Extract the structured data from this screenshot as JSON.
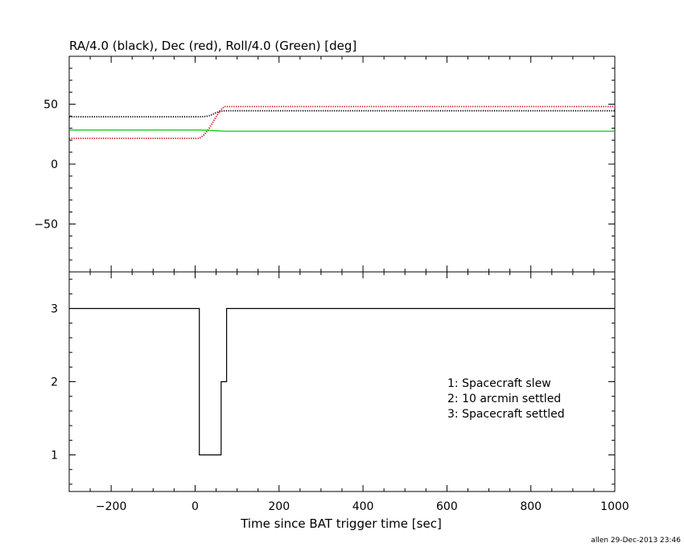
{
  "chart_data": [
    {
      "type": "line",
      "title": "RA/4.0 (black), Dec (red), Roll/4.0 (Green) [deg]",
      "xlim": [
        -300,
        1000
      ],
      "ylim": [
        -90,
        90
      ],
      "y_ticks": [
        50,
        0,
        -50
      ],
      "y_tick_labels": [
        "50",
        "0",
        "−50"
      ],
      "grid": false,
      "series": [
        {
          "name": "RA/4.0",
          "color": "#000000",
          "style": "dotted",
          "x": [
            -300,
            0,
            10,
            20,
            30,
            40,
            50,
            60,
            70,
            1000
          ],
          "y": [
            39.5,
            39.5,
            39.5,
            39.6,
            40,
            41.2,
            43,
            44,
            44.5,
            44.5
          ]
        },
        {
          "name": "Dec",
          "color": "#cc0000",
          "style": "dotted",
          "x": [
            -300,
            0,
            10,
            20,
            30,
            40,
            50,
            60,
            70,
            1000
          ],
          "y": [
            21.5,
            21.5,
            21.5,
            24,
            28,
            33.5,
            39.5,
            45,
            48,
            48
          ]
        },
        {
          "name": "Roll/4.0",
          "color": "#00cc00",
          "style": "solid",
          "x": [
            -300,
            0,
            10,
            30,
            50,
            70,
            1000
          ],
          "y": [
            28.5,
            28.5,
            28.5,
            28.2,
            27.8,
            27.5,
            27.5
          ]
        }
      ]
    },
    {
      "type": "line",
      "step": true,
      "xlabel": "Time since BAT trigger time [sec]",
      "xlim": [
        -300,
        1000
      ],
      "ylim": [
        0.5,
        3.5
      ],
      "x_ticks": [
        -200,
        0,
        200,
        400,
        600,
        800,
        1000
      ],
      "x_tick_labels": [
        "−200",
        "0",
        "200",
        "400",
        "600",
        "800",
        "1000"
      ],
      "y_ticks": [
        3,
        2,
        1
      ],
      "y_tick_labels": [
        "3",
        "2",
        "1"
      ],
      "grid": false,
      "series": [
        {
          "color": "#000000",
          "x": [
            -300,
            10,
            10,
            62,
            62,
            75,
            75,
            1000
          ],
          "y": [
            3,
            3,
            1,
            1,
            2,
            2,
            3,
            3
          ]
        }
      ],
      "annotations": [
        "1: Spacecraft slew",
        "2: 10 arcmin settled",
        "3: Spacecraft settled"
      ]
    }
  ],
  "footer": "allen 29-Dec-2013 23:46"
}
